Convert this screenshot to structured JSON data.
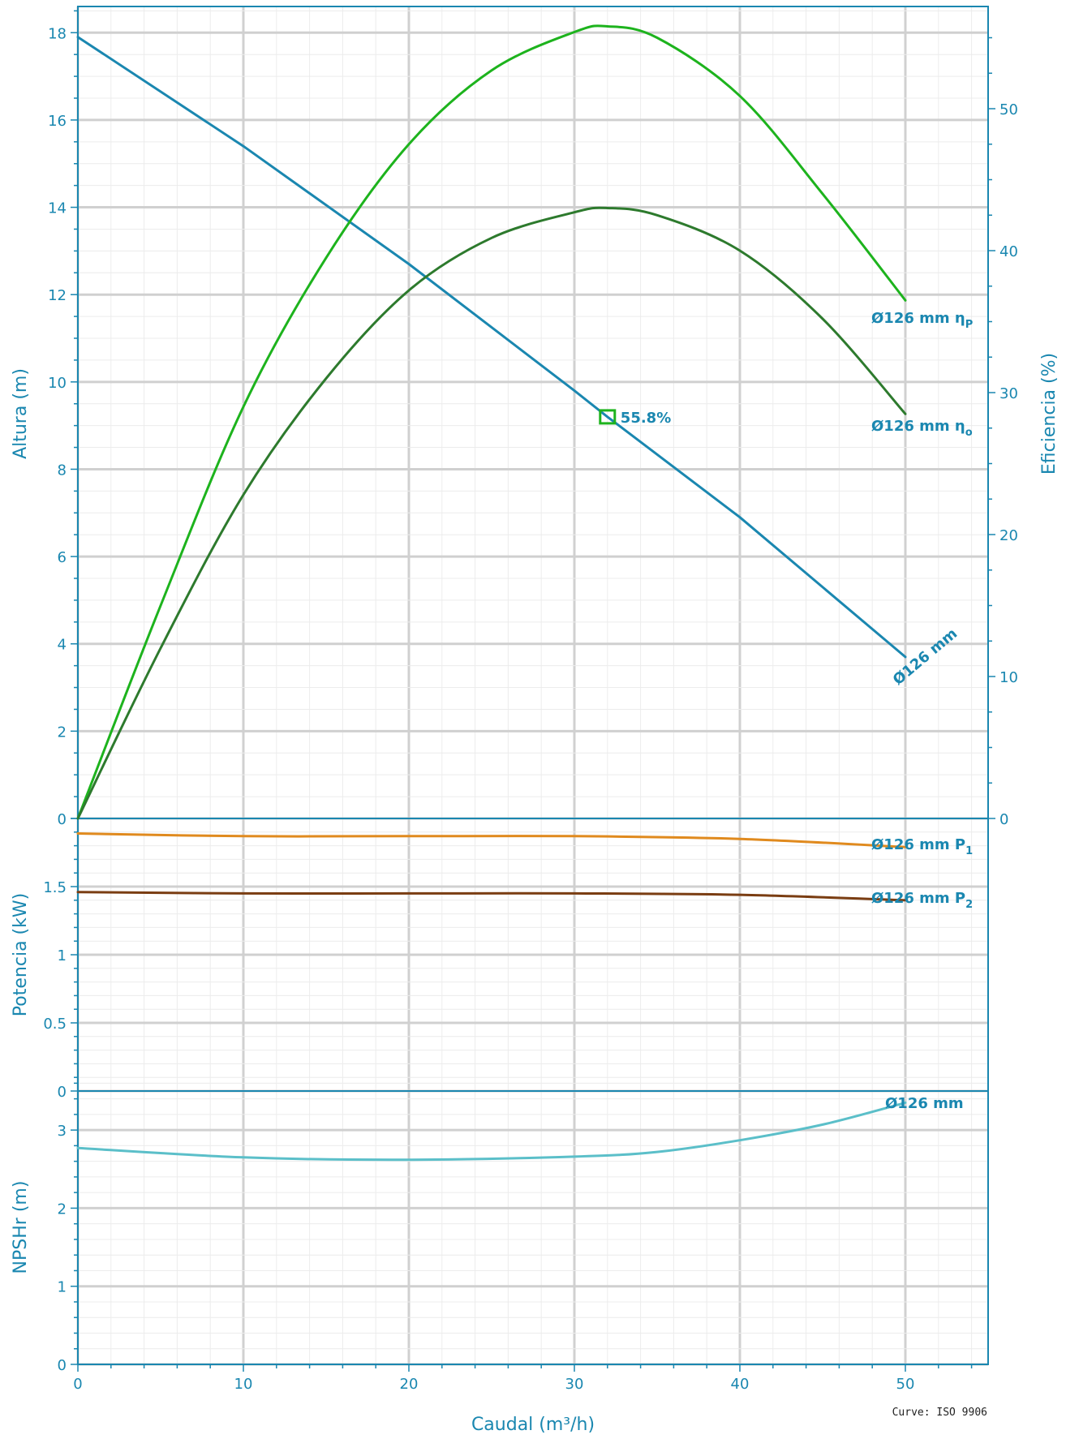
{
  "chart_data": [
    {
      "type": "line",
      "panel": "head-efficiency",
      "ylabel": "Altura (m)",
      "y2label": "Eficiencia (%)",
      "ylim": [
        0,
        18.6
      ],
      "y2lim": [
        0,
        57.2
      ],
      "yticks": [
        0,
        2,
        4,
        6,
        8,
        10,
        12,
        14,
        16,
        18
      ],
      "y2ticks": [
        0,
        10,
        20,
        30,
        40,
        50
      ],
      "series": [
        {
          "name": "Ø126 mm",
          "axis": "left",
          "color": "#1a87b0",
          "points": [
            [
              0,
              17.9
            ],
            [
              10,
              15.4
            ],
            [
              20,
              12.7
            ],
            [
              30,
              9.8
            ],
            [
              32,
              9.2
            ],
            [
              40,
              6.9
            ],
            [
              50,
              3.7
            ]
          ]
        },
        {
          "name": "Ø126 mm η_P",
          "axis": "right",
          "color": "#1db31d",
          "points": [
            [
              0,
              0
            ],
            [
              5,
              15
            ],
            [
              10,
              29
            ],
            [
              15,
              39.5
            ],
            [
              20,
              47.5
            ],
            [
              25,
              52.7
            ],
            [
              30,
              55.4
            ],
            [
              32,
              55.8
            ],
            [
              35,
              55
            ],
            [
              40,
              50.9
            ],
            [
              45,
              44
            ],
            [
              50,
              36.5
            ]
          ]
        },
        {
          "name": "Ø126 mm η_o",
          "axis": "right",
          "color": "#2d7a2d",
          "points": [
            [
              0,
              0
            ],
            [
              5,
              12
            ],
            [
              10,
              22.8
            ],
            [
              15,
              31
            ],
            [
              20,
              37.2
            ],
            [
              25,
              40.9
            ],
            [
              30,
              42.7
            ],
            [
              32,
              43
            ],
            [
              35,
              42.5
            ],
            [
              40,
              40
            ],
            [
              45,
              35.2
            ],
            [
              50,
              28.5
            ]
          ]
        }
      ],
      "marker": {
        "x": 32,
        "y": 9.2,
        "label": "55.8%",
        "color": "#1db31d"
      },
      "labels": {
        "head": "Ø126 mm",
        "eta_p_main": "Ø126 mm  η",
        "eta_p_sub": "P",
        "eta_o_main": "Ø126 mm  η",
        "eta_o_sub": "o"
      }
    },
    {
      "type": "line",
      "panel": "power",
      "ylabel": "Potencia (kW)",
      "ylim": [
        0,
        2.0
      ],
      "yticks": [
        0,
        0.5,
        1,
        1.5
      ],
      "series": [
        {
          "name": "Ø126 mm P1",
          "color": "#e08a1e",
          "points": [
            [
              0,
              1.89
            ],
            [
              10,
              1.87
            ],
            [
              20,
              1.87
            ],
            [
              30,
              1.87
            ],
            [
              40,
              1.85
            ],
            [
              50,
              1.79
            ]
          ]
        },
        {
          "name": "Ø126 mm P2",
          "color": "#7a3d12",
          "points": [
            [
              0,
              1.46
            ],
            [
              10,
              1.45
            ],
            [
              20,
              1.45
            ],
            [
              30,
              1.45
            ],
            [
              40,
              1.44
            ],
            [
              50,
              1.4
            ]
          ]
        }
      ],
      "labels": {
        "p1_main": "Ø126 mm  P",
        "p1_sub": "1",
        "p2_main": "Ø126 mm  P",
        "p2_sub": "2"
      }
    },
    {
      "type": "line",
      "panel": "npsh",
      "ylabel": "NPSHr (m)",
      "xlabel": "Caudal (m³/h)",
      "ylim": [
        0,
        3.5
      ],
      "xlim": [
        0,
        55
      ],
      "yticks": [
        0,
        1,
        2,
        3
      ],
      "xticks": [
        0,
        10,
        20,
        30,
        40,
        50
      ],
      "series": [
        {
          "name": "Ø126 mm",
          "color": "#5bbfc9",
          "points": [
            [
              0,
              2.77
            ],
            [
              10,
              2.65
            ],
            [
              20,
              2.62
            ],
            [
              30,
              2.66
            ],
            [
              35,
              2.72
            ],
            [
              40,
              2.87
            ],
            [
              45,
              3.07
            ],
            [
              50,
              3.35
            ]
          ]
        }
      ],
      "labels": {
        "npsh": "Ø126 mm"
      }
    }
  ],
  "footnote": "Curve: ISO 9906"
}
